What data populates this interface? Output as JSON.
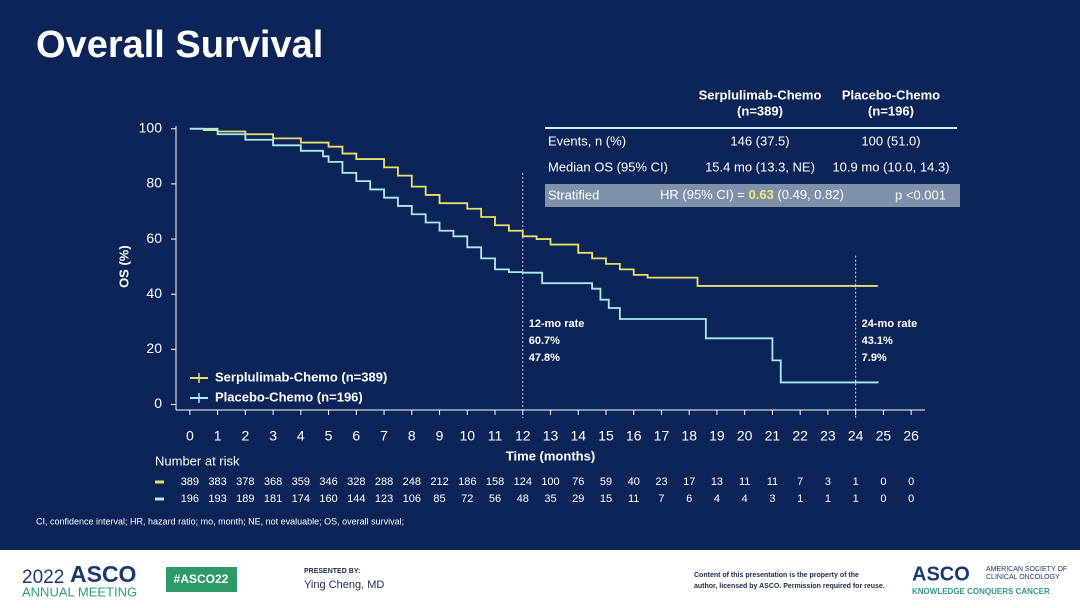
{
  "slide": {
    "title": "Overall Survival"
  },
  "chart_data": {
    "type": "line",
    "step": "post",
    "x_label": "Time (months)",
    "y_label": "OS (%)",
    "xlim": [
      -0.5,
      26.5
    ],
    "ylim": [
      -2,
      101
    ],
    "xticks": [
      0,
      1,
      2,
      3,
      4,
      5,
      6,
      7,
      8,
      9,
      10,
      11,
      12,
      13,
      14,
      15,
      16,
      17,
      18,
      19,
      20,
      21,
      22,
      23,
      24,
      25,
      26
    ],
    "yticks": [
      0,
      20,
      40,
      60,
      80,
      100
    ],
    "legend": "lower left",
    "series": [
      {
        "name": "Serplulimab-Chemo (n=389)",
        "color": "#e8e06a",
        "x": [
          0,
          0.5,
          1,
          2,
          3,
          4,
          5,
          5.5,
          6,
          7,
          7.5,
          8,
          8.5,
          9,
          10,
          10.5,
          11,
          11.5,
          12,
          12.5,
          13,
          14,
          14.5,
          15,
          15.5,
          16,
          16.5,
          18,
          18.3,
          24.8
        ],
        "values": [
          100,
          99.5,
          99,
          98,
          96.5,
          95,
          93.5,
          91,
          89,
          86,
          83,
          79,
          76,
          73,
          71,
          68,
          65,
          63,
          61,
          60,
          58,
          55,
          53,
          51,
          49,
          47,
          46,
          46,
          43,
          43
        ]
      },
      {
        "name": "Placebo-Chemo (n=196)",
        "color": "#a8ecf0",
        "x": [
          0,
          1,
          2,
          3,
          4,
          4.8,
          5,
          5.5,
          6,
          6.5,
          7,
          7.5,
          8,
          8.5,
          9,
          9.5,
          10,
          10.5,
          11,
          11.5,
          12,
          12.7,
          14.5,
          14.8,
          15.1,
          15.5,
          18.6,
          21,
          21.3,
          24.8
        ],
        "values": [
          100,
          98,
          96,
          94,
          92,
          90,
          88,
          84,
          81,
          78,
          75,
          72,
          69,
          66,
          63,
          61,
          57,
          53,
          49,
          48,
          47.8,
          44,
          42,
          38,
          35,
          31,
          24,
          16,
          8,
          7.9
        ]
      }
    ],
    "reference_lines_x": [
      12,
      24
    ],
    "annotations": [
      {
        "x": 12,
        "label": "12-mo rate",
        "rates": [
          "60.7%",
          "47.8%"
        ]
      },
      {
        "x": 24,
        "label": "24-mo rate",
        "rates": [
          "43.1%",
          "7.9%"
        ]
      }
    ]
  },
  "stats_table": {
    "columns": [
      [
        "Serplulimab-Chemo",
        "(n=389)"
      ],
      [
        "Placebo-Chemo",
        "(n=196)"
      ]
    ],
    "rows": [
      [
        "Events, n (%)",
        "146 (37.5)",
        "100 (51.0)"
      ],
      [
        "Median OS (95% CI)",
        "15.4 mo (13.3, NE)",
        "10.9 mo (10.0, 14.3)"
      ]
    ],
    "stratified": {
      "label": "Stratified",
      "hr_text": "HR (95% CI) = ",
      "hr": "0.63",
      "ci": " (0.49, 0.82)",
      "p": "p <0.001"
    }
  },
  "risk_table": {
    "title": "Number at risk",
    "rows": [
      [
        389,
        383,
        378,
        368,
        359,
        346,
        328,
        288,
        248,
        212,
        186,
        158,
        124,
        100,
        76,
        59,
        40,
        23,
        17,
        13,
        11,
        11,
        7,
        3,
        1,
        0,
        0
      ],
      [
        196,
        193,
        189,
        181,
        174,
        160,
        144,
        123,
        106,
        85,
        72,
        56,
        48,
        35,
        29,
        15,
        11,
        7,
        6,
        4,
        4,
        3,
        1,
        1,
        1,
        0,
        0
      ]
    ]
  },
  "footnote": "CI, confidence interval; HR, hazard ratio; mo, month; NE, not evaluable; OS, overall survival;",
  "footer": {
    "year": "2022",
    "brand": "ASCO",
    "meeting": "ANNUAL MEETING",
    "hashtag": "#ASCO22",
    "presented_by": "PRESENTED BY:",
    "presenter": "Ying Cheng, MD",
    "notice": [
      "Content of this presentation is the property of the",
      "author, licensed by ASCO. Permission required for reuse."
    ],
    "society_logo": "ASCO",
    "society": [
      "AMERICAN SOCIETY OF",
      "CLINICAL ONCOLOGY"
    ],
    "tagline": "KNOWLEDGE CONQUERS CANCER"
  }
}
